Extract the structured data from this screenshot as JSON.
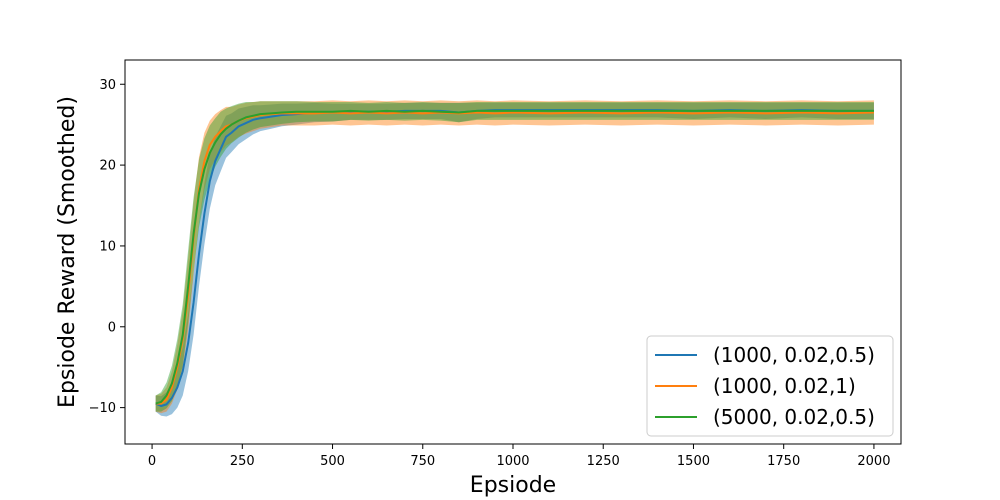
{
  "chart_data": {
    "type": "line",
    "title": "",
    "xlabel": "Epsiode",
    "ylabel": "Epsiode Reward (Smoothed)",
    "xlim": [
      -75,
      2075
    ],
    "ylim": [
      -14.5,
      33
    ],
    "xticks": [
      0,
      250,
      500,
      750,
      1000,
      1250,
      1500,
      1750,
      2000
    ],
    "yticks": [
      -10,
      0,
      10,
      20,
      30
    ],
    "grid": false,
    "legend_position": "lower right",
    "series": [
      {
        "name": "(1000, 0.02,0.5)",
        "color": "#1f77b4",
        "x": [
          10,
          25,
          40,
          55,
          70,
          85,
          100,
          115,
          130,
          145,
          160,
          175,
          190,
          205,
          220,
          240,
          260,
          280,
          300,
          330,
          360,
          400,
          450,
          500,
          550,
          600,
          650,
          700,
          750,
          800,
          850,
          900,
          950,
          1000,
          1100,
          1200,
          1300,
          1400,
          1500,
          1600,
          1700,
          1800,
          1900,
          2000
        ],
        "y": [
          -9.5,
          -9.8,
          -9.6,
          -8.8,
          -7.5,
          -5.5,
          -2.0,
          3.0,
          9.0,
          14.0,
          18.0,
          20.5,
          22.0,
          23.5,
          24.0,
          24.8,
          25.2,
          25.6,
          25.8,
          26.0,
          26.2,
          26.3,
          26.5,
          26.5,
          26.6,
          26.6,
          26.6,
          26.7,
          26.7,
          26.7,
          26.5,
          26.7,
          26.8,
          26.8,
          26.8,
          26.8,
          26.8,
          26.8,
          26.7,
          26.8,
          26.7,
          26.8,
          26.7,
          26.7
        ],
        "band": [
          1.0,
          1.2,
          1.5,
          2.0,
          2.5,
          3.0,
          3.5,
          4.0,
          4.0,
          3.8,
          3.4,
          3.0,
          2.8,
          2.6,
          2.4,
          2.2,
          2.0,
          1.8,
          1.6,
          1.5,
          1.4,
          1.3,
          1.2,
          1.1,
          1.0,
          1.0,
          1.0,
          1.0,
          1.0,
          1.0,
          1.2,
          1.0,
          0.9,
          0.9,
          0.9,
          0.9,
          0.9,
          0.9,
          1.0,
          0.9,
          1.0,
          0.9,
          1.0,
          1.0
        ]
      },
      {
        "name": "(1000, 0.02,1)",
        "color": "#ff7f0e",
        "x": [
          10,
          25,
          40,
          55,
          70,
          85,
          100,
          115,
          130,
          145,
          160,
          175,
          190,
          205,
          220,
          240,
          260,
          280,
          300,
          330,
          360,
          400,
          450,
          500,
          550,
          600,
          650,
          700,
          750,
          800,
          850,
          900,
          950,
          1000,
          1100,
          1200,
          1300,
          1400,
          1500,
          1600,
          1700,
          1800,
          1900,
          2000
        ],
        "y": [
          -9.5,
          -9.5,
          -9.0,
          -7.5,
          -5.0,
          -1.5,
          4.0,
          11.0,
          17.0,
          20.5,
          22.5,
          23.5,
          24.2,
          24.8,
          25.0,
          25.5,
          25.8,
          26.0,
          26.2,
          26.3,
          26.4,
          26.4,
          26.4,
          26.5,
          26.4,
          26.5,
          26.4,
          26.5,
          26.4,
          26.5,
          26.4,
          26.5,
          26.4,
          26.5,
          26.4,
          26.5,
          26.4,
          26.5,
          26.4,
          26.5,
          26.4,
          26.5,
          26.4,
          26.5
        ],
        "band": [
          1.0,
          1.2,
          1.5,
          2.0,
          2.8,
          3.5,
          4.5,
          4.5,
          4.0,
          3.5,
          3.0,
          2.8,
          2.6,
          2.4,
          2.2,
          2.0,
          1.9,
          1.8,
          1.7,
          1.6,
          1.5,
          1.5,
          1.5,
          1.5,
          1.5,
          1.5,
          1.5,
          1.5,
          1.5,
          1.5,
          1.5,
          1.5,
          1.5,
          1.5,
          1.5,
          1.5,
          1.5,
          1.5,
          1.5,
          1.5,
          1.5,
          1.5,
          1.5,
          1.5
        ]
      },
      {
        "name": "(5000, 0.02,0.5)",
        "color": "#2ca02c",
        "x": [
          10,
          25,
          40,
          55,
          70,
          85,
          100,
          115,
          130,
          145,
          160,
          175,
          190,
          205,
          220,
          240,
          260,
          280,
          300,
          330,
          360,
          400,
          450,
          500,
          550,
          600,
          650,
          700,
          750,
          800,
          850,
          900,
          950,
          1000,
          1100,
          1200,
          1300,
          1400,
          1500,
          1600,
          1700,
          1800,
          1900,
          2000
        ],
        "y": [
          -9.5,
          -9.3,
          -8.5,
          -7.0,
          -4.5,
          -1.0,
          5.0,
          11.5,
          16.5,
          19.5,
          21.5,
          22.8,
          23.8,
          24.5,
          25.0,
          25.5,
          25.9,
          26.1,
          26.3,
          26.4,
          26.5,
          26.6,
          26.6,
          26.6,
          26.7,
          26.6,
          26.7,
          26.6,
          26.7,
          26.6,
          26.5,
          26.7,
          26.7,
          26.7,
          26.7,
          26.7,
          26.7,
          26.7,
          26.7,
          26.7,
          26.7,
          26.7,
          26.7,
          26.7
        ],
        "band": [
          1.0,
          1.2,
          1.6,
          2.2,
          3.0,
          3.8,
          4.5,
          4.5,
          4.2,
          3.8,
          3.4,
          3.0,
          2.8,
          2.5,
          2.3,
          2.1,
          1.9,
          1.7,
          1.6,
          1.5,
          1.4,
          1.3,
          1.2,
          1.2,
          1.1,
          1.1,
          1.1,
          1.1,
          1.1,
          1.1,
          1.2,
          1.1,
          1.1,
          1.1,
          1.1,
          1.1,
          1.1,
          1.1,
          1.1,
          1.1,
          1.1,
          1.1,
          1.1,
          1.1
        ]
      }
    ]
  }
}
